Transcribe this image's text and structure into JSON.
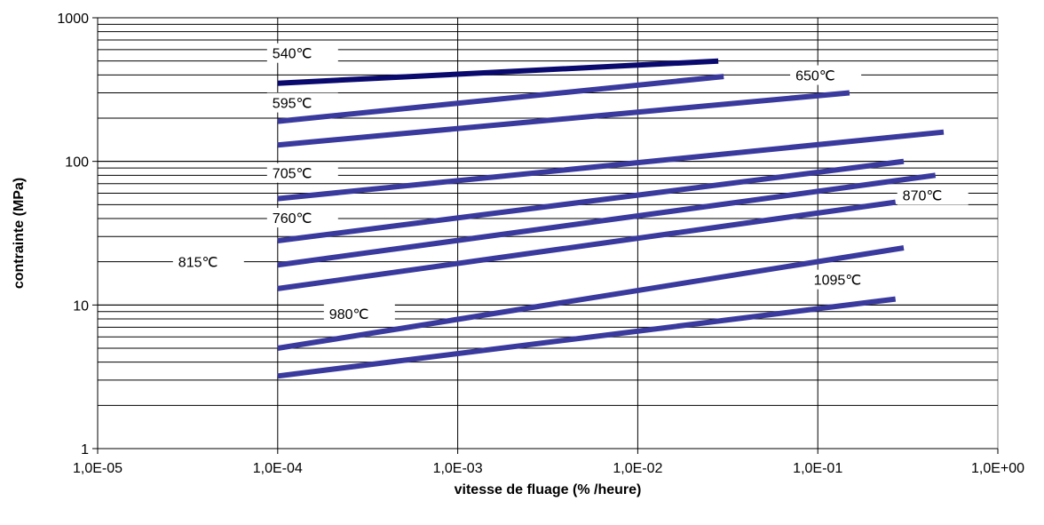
{
  "chart_data": {
    "type": "line",
    "x_scale": "log",
    "y_scale": "log",
    "xlabel": "vitesse de fluage (% /heure)",
    "ylabel": "contrainte (MPa)",
    "xlim": [
      1e-05,
      1
    ],
    "ylim": [
      1,
      1000
    ],
    "x_ticks": [
      {
        "value": 1e-05,
        "label": "1,0E-05"
      },
      {
        "value": 0.0001,
        "label": "1,0E-04"
      },
      {
        "value": 0.001,
        "label": "1,0E-03"
      },
      {
        "value": 0.01,
        "label": "1,0E-02"
      },
      {
        "value": 0.1,
        "label": "1,0E-01"
      },
      {
        "value": 1,
        "label": "1,0E+00"
      }
    ],
    "y_ticks": [
      {
        "value": 1,
        "label": "1"
      },
      {
        "value": 10,
        "label": "10"
      },
      {
        "value": 100,
        "label": "100"
      },
      {
        "value": 1000,
        "label": "1000"
      }
    ],
    "grid": "horizontal major and minor, vertical major",
    "colors": {
      "series_line": "#3a3a9e",
      "series_line_dark": "#0a0a6e",
      "grid": "#000000",
      "plot_border": "#808080"
    },
    "series": [
      {
        "name": "540℃",
        "x": [
          0.0001,
          0.028
        ],
        "y": [
          350,
          500
        ]
      },
      {
        "name": "595℃",
        "x": [
          0.0001,
          0.03
        ],
        "y": [
          190,
          390
        ]
      },
      {
        "name": "650℃",
        "x": [
          0.0001,
          0.15
        ],
        "y": [
          130,
          300
        ]
      },
      {
        "name": "705℃",
        "x": [
          0.0001,
          0.5
        ],
        "y": [
          55,
          160
        ]
      },
      {
        "name": "760℃",
        "x": [
          0.0001,
          0.3
        ],
        "y": [
          28,
          100
        ]
      },
      {
        "name": "815℃",
        "x": [
          0.0001,
          0.45
        ],
        "y": [
          19,
          80
        ]
      },
      {
        "name": "870℃",
        "x": [
          0.0001,
          0.27
        ],
        "y": [
          13,
          52
        ]
      },
      {
        "name": "980℃",
        "x": [
          0.0001,
          0.3
        ],
        "y": [
          5,
          25
        ]
      },
      {
        "name": "1095℃",
        "x": [
          0.0001,
          0.27
        ],
        "y": [
          3.2,
          11
        ]
      }
    ]
  }
}
